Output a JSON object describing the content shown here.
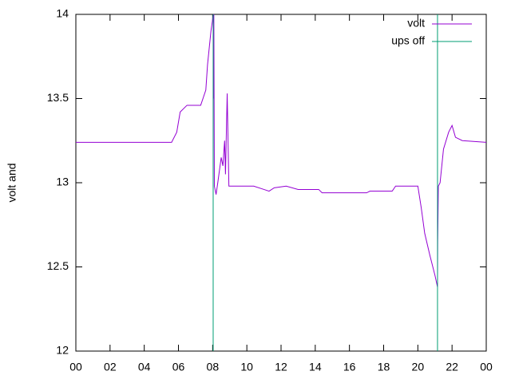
{
  "chart_data": {
    "type": "line",
    "ylabel": "volt and",
    "xlim": [
      0,
      24
    ],
    "ylim": [
      12,
      14
    ],
    "xticks": [
      {
        "value": 0,
        "label": "00"
      },
      {
        "value": 2,
        "label": "02"
      },
      {
        "value": 4,
        "label": "04"
      },
      {
        "value": 6,
        "label": "06"
      },
      {
        "value": 8,
        "label": "08"
      },
      10,
      12,
      14,
      16,
      18,
      20,
      22,
      {
        "value": 24,
        "label": "00"
      }
    ],
    "yticks": [
      12,
      12.5,
      13,
      13.5,
      14
    ],
    "legend": "top-right",
    "series": [
      {
        "name": "volt",
        "color": "#9400d3",
        "x": [
          0,
          5.6,
          5.9,
          6.1,
          6.5,
          7.3,
          7.6,
          7.7,
          7.9,
          8.0,
          8.03,
          8.05,
          8.07,
          8.1,
          8.2,
          8.3,
          8.5,
          8.6,
          8.7,
          8.75,
          8.85,
          8.95,
          10.4,
          11.0,
          11.3,
          11.6,
          12.3,
          13.0,
          14.2,
          14.4,
          17.0,
          17.2,
          18.5,
          18.7,
          20.0,
          20.2,
          20.4,
          20.7,
          21.0,
          21.15,
          21.16,
          21.2,
          21.3,
          21.5,
          21.8,
          22.0,
          22.2,
          22.6,
          24
        ],
        "values": [
          13.24,
          13.24,
          13.3,
          13.42,
          13.46,
          13.46,
          13.55,
          13.7,
          13.9,
          13.97,
          14.0,
          13.5,
          14.0,
          12.98,
          12.93,
          13.0,
          13.15,
          13.1,
          13.25,
          13.05,
          13.53,
          12.98,
          12.98,
          12.96,
          12.95,
          12.97,
          12.98,
          12.96,
          12.96,
          12.94,
          12.94,
          12.95,
          12.95,
          12.98,
          12.98,
          12.85,
          12.7,
          12.57,
          12.45,
          12.38,
          12.65,
          12.98,
          13.0,
          13.2,
          13.3,
          13.34,
          13.27,
          13.25,
          13.24
        ]
      },
      {
        "name": "ups off",
        "color": "#009e73",
        "x": [
          8.03,
          8.03,
          null,
          21.15,
          21.15
        ],
        "values": [
          12,
          14,
          null,
          12,
          14
        ]
      }
    ]
  }
}
